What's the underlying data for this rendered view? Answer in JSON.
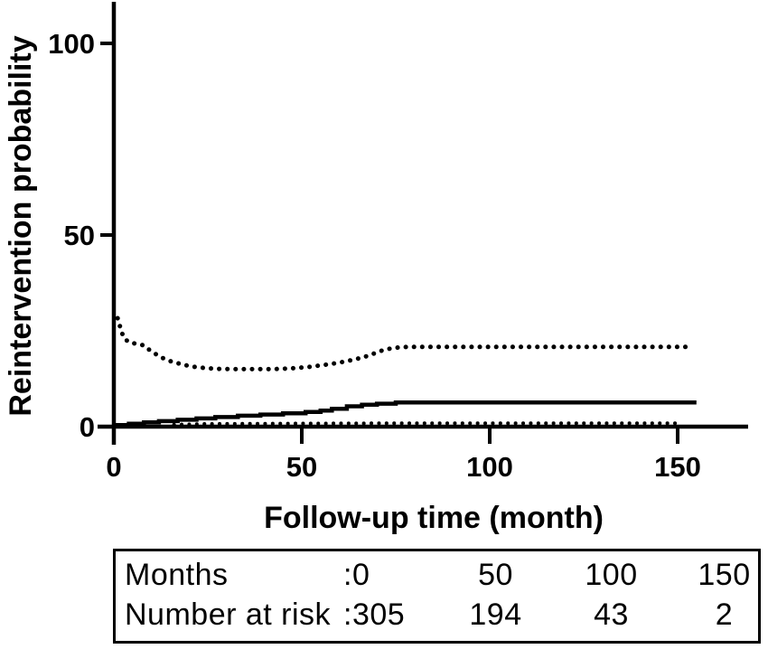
{
  "chart_data": {
    "type": "line",
    "title": "",
    "xlabel": "Follow-up time (month)",
    "ylabel": "Reintervention probability",
    "xlim": [
      0,
      168
    ],
    "ylim": [
      0,
      110
    ],
    "x_ticks": [
      "0",
      "50",
      "100",
      "150"
    ],
    "x_tick_values": [
      0,
      50,
      100,
      150
    ],
    "y_ticks": [
      "0",
      "50",
      "100"
    ],
    "y_tick_values": [
      0,
      50,
      100
    ],
    "grid": false,
    "legend": "none",
    "series": [
      {
        "name": "reintervention-cumulative-incidence",
        "line_style": "solid-step",
        "points": [
          [
            0,
            0.4
          ],
          [
            4,
            0.75
          ],
          [
            8,
            1.1
          ],
          [
            12,
            1.45
          ],
          [
            17,
            1.8
          ],
          [
            22,
            2.15
          ],
          [
            27,
            2.5
          ],
          [
            33,
            2.85
          ],
          [
            39,
            3.15
          ],
          [
            45,
            3.5
          ],
          [
            51,
            3.85
          ],
          [
            55,
            4.2
          ],
          [
            58,
            4.65
          ],
          [
            62,
            5.3
          ],
          [
            66,
            5.7
          ],
          [
            70,
            6.0
          ],
          [
            75,
            6.3
          ],
          [
            155,
            6.3
          ]
        ]
      },
      {
        "name": "upper-95ci-band",
        "line_style": "dotted",
        "points": [
          [
            1,
            28.3
          ],
          [
            1.8,
            25.6
          ],
          [
            2.6,
            23.2
          ],
          [
            4,
            22.0
          ],
          [
            6,
            21.6
          ],
          [
            8,
            21.2
          ],
          [
            9.5,
            20.0
          ],
          [
            11,
            19.0
          ],
          [
            13,
            17.9
          ],
          [
            15.5,
            16.9
          ],
          [
            18,
            16.3
          ],
          [
            20.5,
            15.7
          ],
          [
            23,
            15.4
          ],
          [
            27,
            15.1
          ],
          [
            32,
            15.0
          ],
          [
            37,
            15.0
          ],
          [
            42,
            15.0
          ],
          [
            47,
            15.2
          ],
          [
            52,
            15.6
          ],
          [
            56,
            16.1
          ],
          [
            60,
            16.7
          ],
          [
            63,
            17.3
          ],
          [
            66,
            18.0
          ],
          [
            68.5,
            18.8
          ],
          [
            70.5,
            19.6
          ],
          [
            72.5,
            20.2
          ],
          [
            75,
            20.6
          ],
          [
            78,
            20.8
          ],
          [
            153,
            20.8
          ]
        ]
      },
      {
        "name": "lower-95ci-band",
        "line_style": "dotted-small",
        "points": [
          [
            16,
            0.5
          ],
          [
            24,
            0.7
          ],
          [
            45,
            0.8
          ],
          [
            75,
            0.9
          ],
          [
            150,
            0.9
          ]
        ]
      }
    ]
  },
  "risk_table": {
    "rows": [
      {
        "label": "Months",
        "values": [
          ":0",
          "50",
          "100",
          "150"
        ]
      },
      {
        "label": "Number at risk",
        "values": [
          ":305",
          "194",
          "43",
          "2"
        ]
      }
    ]
  },
  "colors": {
    "ink": "#000000",
    "background": "#ffffff"
  }
}
